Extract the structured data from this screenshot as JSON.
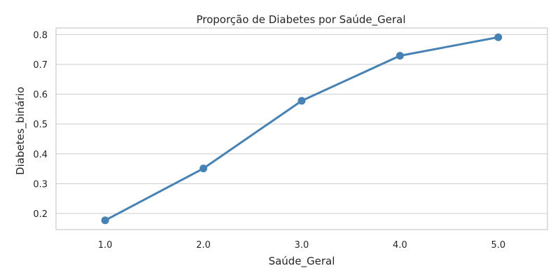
{
  "chart_data": {
    "type": "line",
    "title": "Proporção de Diabetes por Saúde_Geral",
    "xlabel": "Saúde_Geral",
    "ylabel": "Diabetes_binário",
    "categories": [
      "1.0",
      "2.0",
      "3.0",
      "4.0",
      "5.0"
    ],
    "series": [
      {
        "values": [
          0.177,
          0.351,
          0.578,
          0.729,
          0.791
        ]
      }
    ],
    "yticks": [
      "0.2",
      "0.3",
      "0.4",
      "0.5",
      "0.6",
      "0.7",
      "0.8"
    ],
    "ytick_values": [
      0.2,
      0.3,
      0.4,
      0.5,
      0.6,
      0.7,
      0.8
    ],
    "ylim": [
      0.146,
      0.822
    ],
    "grid": true,
    "line_color": "#4682b4"
  }
}
